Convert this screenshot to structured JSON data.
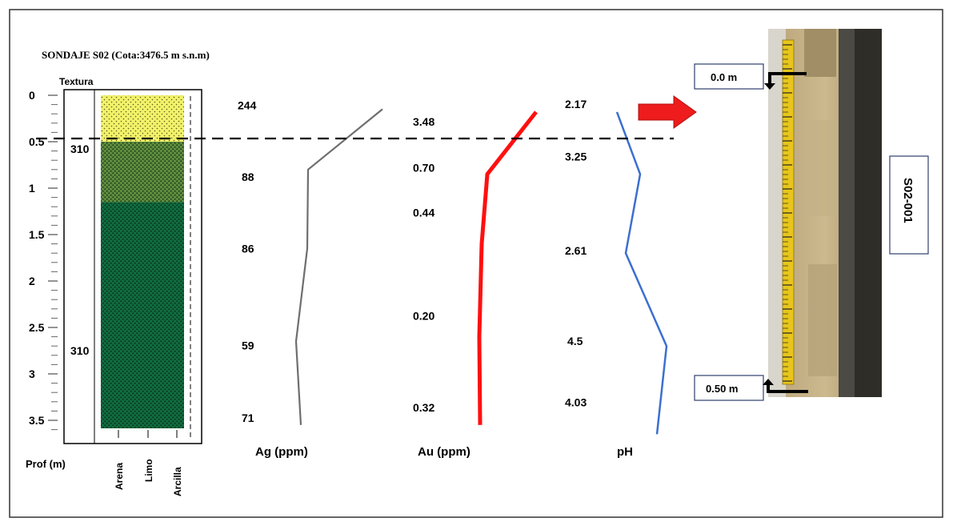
{
  "title": "SONDAJE S02 (Cota:3476.5 m s.n.m)",
  "texture_label": "Textura",
  "depth_axis": {
    "label": "Prof (m)",
    "ticks": [
      "0",
      "0.5",
      "1",
      "1.5",
      "2",
      "2.5",
      "3",
      "3.5"
    ],
    "tick_values": [
      0,
      0.5,
      1,
      1.5,
      2,
      2.5,
      3,
      3.5
    ]
  },
  "texture_axis": [
    "Arena",
    "Limo",
    "Arcilla"
  ],
  "layer_codes": [
    "310",
    "310"
  ],
  "layers": [
    {
      "top": 0.0,
      "bottom": 0.5,
      "color": "#f2f26a"
    },
    {
      "top": 0.5,
      "bottom": 1.15,
      "color": "#5b8a3c"
    },
    {
      "top": 1.15,
      "bottom": 3.6,
      "color": "#0f6b3f"
    }
  ],
  "colors": {
    "ag": "#6e6e6e",
    "au": "#ff1010",
    "ph": "#3c6fd0",
    "arrow": "#ee1c1c"
  },
  "chart_data": {
    "type": "line",
    "series": [
      {
        "name": "Ag (ppm)",
        "depths": [
          0.15,
          0.8,
          1.65,
          2.65,
          3.55
        ],
        "values": [
          244,
          88,
          86,
          59,
          71
        ],
        "labels": [
          "244",
          "88",
          "86",
          "59",
          "71"
        ]
      },
      {
        "name": "Au (ppm)",
        "depths": [
          0.2,
          0.85,
          1.6,
          2.6,
          3.55
        ],
        "values": [
          3.48,
          0.7,
          0.44,
          0.2,
          0.32
        ],
        "labels": [
          "3.48",
          "0.70",
          "0.44",
          "0.20",
          "0.32"
        ]
      },
      {
        "name": "pH",
        "depths": [
          0.2,
          0.85,
          1.7,
          2.7,
          3.65
        ],
        "values": [
          2.17,
          3.25,
          2.61,
          4.5,
          4.03
        ],
        "labels": [
          "2.17",
          "3.25",
          "2.61",
          "4.5",
          "4.03"
        ]
      }
    ],
    "reference_depth": 0.5
  },
  "photo": {
    "top_label": "0.0 m",
    "bottom_label": "0.50 m",
    "sample_id": "S02-001"
  }
}
